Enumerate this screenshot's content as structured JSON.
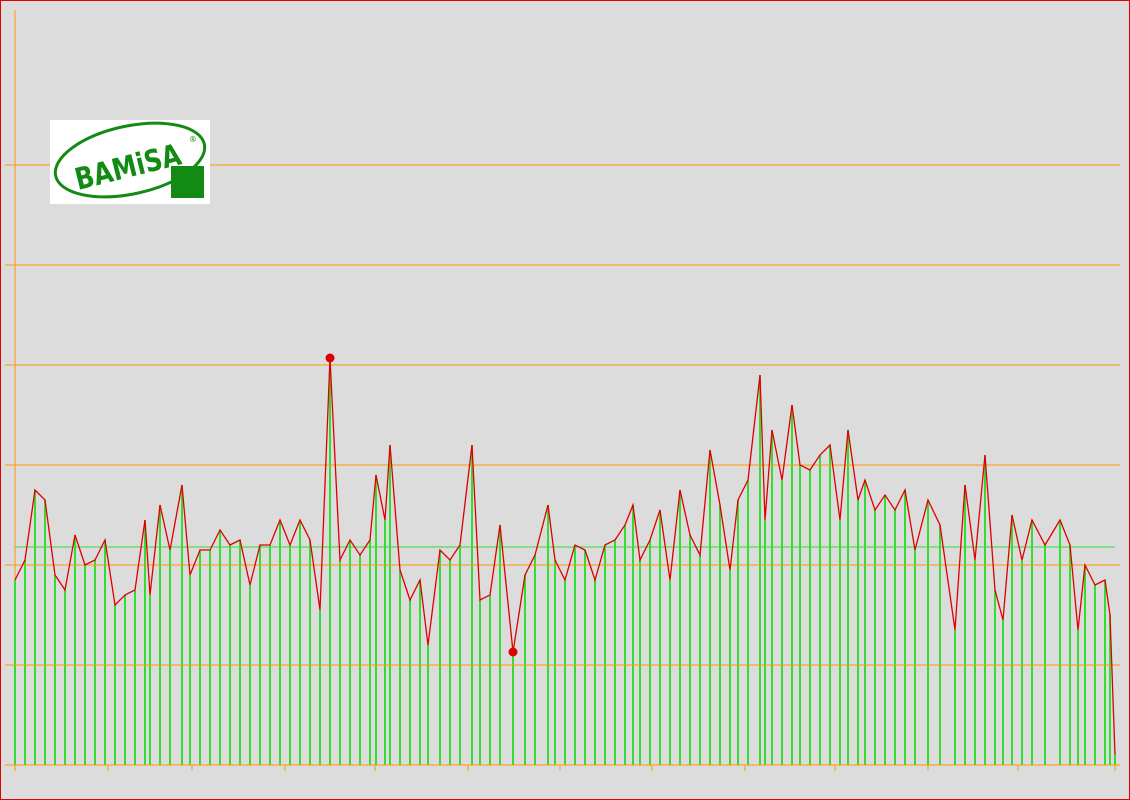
{
  "chart_data": {
    "type": "bar-line",
    "logo": {
      "text": "BAMiSA",
      "mark": "®"
    },
    "x": [
      0,
      10,
      20,
      30,
      40,
      50,
      60,
      70,
      80,
      90,
      100,
      110,
      120,
      130,
      135,
      145,
      155,
      167,
      175,
      185,
      195,
      205,
      215,
      225,
      235,
      245,
      255,
      265,
      275,
      285,
      295,
      305,
      315,
      325,
      335,
      345,
      355,
      361,
      370,
      375,
      385,
      395,
      405,
      413,
      425,
      435,
      445,
      457,
      465,
      475,
      485,
      498,
      510,
      520,
      533,
      540,
      550,
      560,
      570,
      580,
      590,
      600,
      610,
      618,
      625,
      635,
      645,
      655,
      665,
      675,
      685,
      695,
      705,
      715,
      723,
      733,
      745,
      750,
      757,
      767,
      777,
      785,
      795,
      805,
      815,
      825,
      833,
      843,
      850,
      860,
      870,
      880,
      890,
      900,
      913,
      925,
      940,
      950,
      960,
      970,
      980,
      988,
      997,
      1007,
      1017,
      1030,
      1045,
      1055,
      1063,
      1070,
      1080,
      1090,
      1095,
      1100
    ],
    "values": [
      1.85,
      2.05,
      2.75,
      2.65,
      1.9,
      1.75,
      2.3,
      2.0,
      2.05,
      2.25,
      1.6,
      1.7,
      1.75,
      2.45,
      1.7,
      2.6,
      2.15,
      2.8,
      1.9,
      2.15,
      2.15,
      2.35,
      2.2,
      2.25,
      1.8,
      2.2,
      2.2,
      2.45,
      2.2,
      2.45,
      2.25,
      1.55,
      4.07,
      2.05,
      2.25,
      2.1,
      2.25,
      2.9,
      2.45,
      3.2,
      1.95,
      1.65,
      1.85,
      1.2,
      2.15,
      2.05,
      2.2,
      3.2,
      1.65,
      1.7,
      2.4,
      1.13,
      1.9,
      2.1,
      2.6,
      2.05,
      1.85,
      2.2,
      2.15,
      1.85,
      2.2,
      2.25,
      2.4,
      2.6,
      2.05,
      2.25,
      2.55,
      1.85,
      2.75,
      2.3,
      2.1,
      3.15,
      2.6,
      1.95,
      2.65,
      2.85,
      3.9,
      2.45,
      3.35,
      2.85,
      3.6,
      3.0,
      2.95,
      3.1,
      3.2,
      2.45,
      3.35,
      2.65,
      2.85,
      2.55,
      2.7,
      2.55,
      2.75,
      2.15,
      2.65,
      2.4,
      1.35,
      2.8,
      2.05,
      3.1,
      1.75,
      1.45,
      2.5,
      2.05,
      2.45,
      2.2,
      2.45,
      2.2,
      1.35,
      2.0,
      1.8,
      1.85,
      1.5,
      0.1
    ],
    "bar_color": "#33dd33",
    "line_color": "#dd0000",
    "mean": 2.18,
    "mean_color": "#33dd33",
    "xlim": [
      0,
      1100
    ],
    "xticks": [
      0,
      93,
      177,
      270,
      360,
      453,
      545,
      637,
      730,
      820,
      913,
      1003,
      1100
    ],
    "ylim": [
      0,
      7.55
    ],
    "yticks": [
      0,
      1,
      2,
      3,
      4,
      5,
      6
    ],
    "grid": true,
    "grid_color": "#ff9900"
  }
}
